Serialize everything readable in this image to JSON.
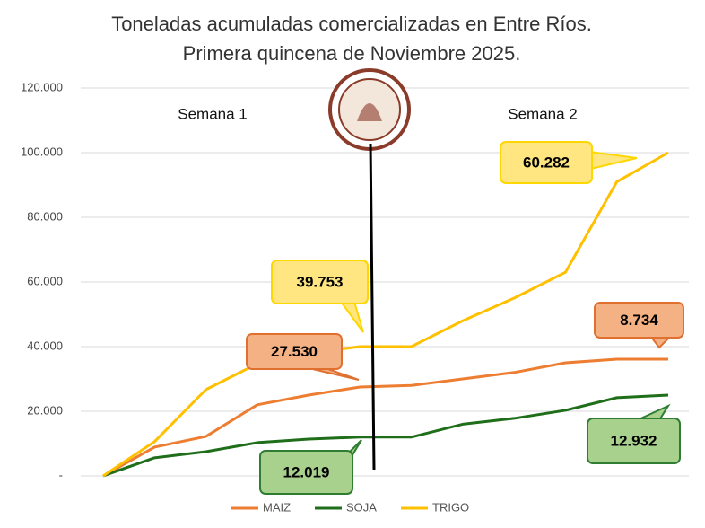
{
  "chart_data": {
    "type": "line",
    "title": "Toneladas acumuladas comercializadas en Entre Ríos.",
    "subtitle": "Primera quincena de Noviembre 2025.",
    "categories": [
      null,
      null,
      null,
      null,
      null,
      null,
      null,
      null,
      null,
      null,
      null,
      null
    ],
    "series": [
      {
        "name": "MAIZ",
        "color": "#ed7d31",
        "values": [
          0,
          8900,
          12200,
          22000,
          25000,
          27500,
          28000,
          30000,
          32000,
          35000,
          36100,
          36100
        ]
      },
      {
        "name": "SOJA",
        "color": "#1f6e1a",
        "values": [
          0,
          5600,
          7500,
          10300,
          11400,
          12000,
          12000,
          16000,
          17800,
          20300,
          24200,
          25000
        ]
      },
      {
        "name": "TRIGO",
        "color": "#ffc000",
        "values": [
          0,
          10600,
          26700,
          34700,
          38000,
          40000,
          40000,
          48000,
          55000,
          63000,
          91000,
          100000
        ]
      }
    ],
    "ylim": [
      0,
      120000
    ],
    "yticks": [
      {
        "value": 0,
        "label": "-"
      },
      {
        "value": 20000,
        "label": "20.000"
      },
      {
        "value": 40000,
        "label": "40.000"
      },
      {
        "value": 60000,
        "label": "60.000"
      },
      {
        "value": 80000,
        "label": "80.000"
      },
      {
        "value": 100000,
        "label": "100.000"
      },
      {
        "value": 120000,
        "label": "120.000"
      }
    ],
    "grid": true,
    "legend": "bottom",
    "week_labels": [
      "Semana 1",
      "Semana 2"
    ],
    "annotations": [
      {
        "text": "60.282",
        "fill": "#ffe680",
        "stroke": "#ffd700"
      },
      {
        "text": "39.753",
        "fill": "#ffe680",
        "stroke": "#ffd700"
      },
      {
        "text": "27.530",
        "fill": "#f4b183",
        "stroke": "#e07030"
      },
      {
        "text": "8.734",
        "fill": "#f4b183",
        "stroke": "#e07030"
      },
      {
        "text": "12.019",
        "fill": "#a9d18e",
        "stroke": "#2e7d32"
      },
      {
        "text": "12.932",
        "fill": "#a9d18e",
        "stroke": "#2e7d32"
      }
    ]
  }
}
